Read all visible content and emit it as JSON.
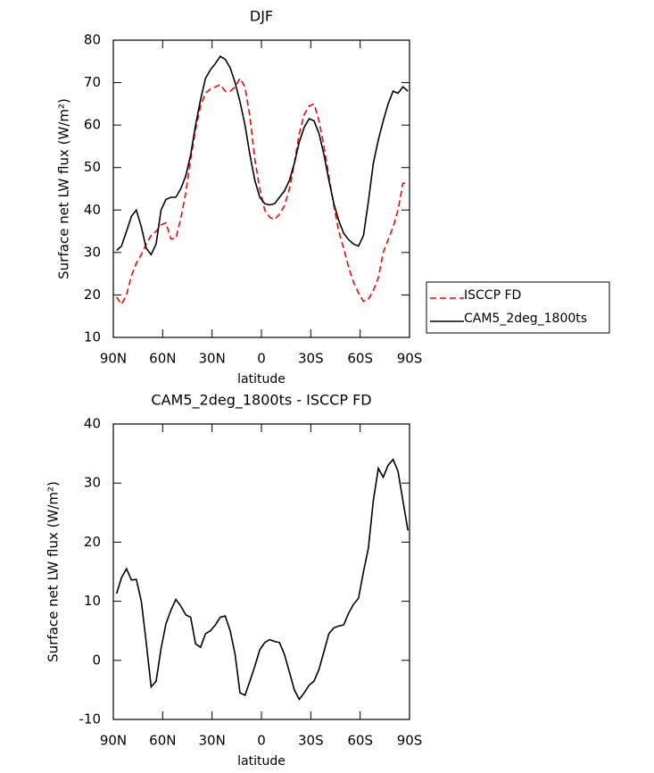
{
  "chart_data": [
    {
      "type": "line",
      "title": "DJF",
      "xlabel": "latitude",
      "ylabel": "Surface net LW flux (W/m²)",
      "x": [
        88,
        85,
        82,
        79,
        76,
        73,
        70,
        67,
        64,
        61,
        58,
        55,
        52,
        49,
        46,
        43,
        40,
        37,
        34,
        31,
        28,
        25,
        22,
        19,
        16,
        13,
        10,
        7,
        4,
        1,
        -2,
        -5,
        -8,
        -11,
        -14,
        -17,
        -20,
        -23,
        -26,
        -29,
        -32,
        -35,
        -38,
        -41,
        -44,
        -47,
        -50,
        -53,
        -56,
        -59,
        -62,
        -65,
        -68,
        -71,
        -74,
        -77,
        -80,
        -83,
        -86,
        -89
      ],
      "series": [
        {
          "name": "ISCCP FD",
          "color": "#ff0000",
          "linestyle": "dashed",
          "values": [
            19.5,
            17.8,
            20,
            24.5,
            27.5,
            29.5,
            32,
            34,
            35,
            36.5,
            37,
            33.2,
            33.3,
            38,
            44,
            52,
            59,
            64.5,
            67.5,
            68.5,
            69,
            69.5,
            68,
            68,
            69,
            71,
            69,
            62,
            52,
            45,
            40,
            38.3,
            37.8,
            39,
            41,
            45,
            51,
            58,
            62.5,
            64.5,
            65,
            61,
            55,
            48,
            41,
            35,
            31,
            26.5,
            23,
            20.5,
            18.5,
            19,
            21,
            24,
            30,
            33,
            36,
            40,
            46.3,
            46.3
          ]
        },
        {
          "name": "CAM5_2deg_1800ts",
          "color": "#000000",
          "linestyle": "solid",
          "values": [
            30.5,
            31.5,
            35,
            38.5,
            40,
            36,
            31,
            29.5,
            32,
            40,
            42.5,
            43,
            43,
            45,
            48,
            53,
            60,
            66,
            71,
            73,
            74.5,
            76.2,
            75.5,
            73.5,
            70,
            65.5,
            60,
            53,
            47,
            43,
            41.5,
            41.2,
            41.5,
            43,
            44.5,
            47,
            51,
            56,
            59.5,
            61.5,
            61,
            58,
            53,
            47,
            41.5,
            37.5,
            34.5,
            33,
            32,
            31.5,
            34,
            42,
            51,
            56.5,
            61,
            65,
            68,
            67.5,
            69,
            68
          ]
        }
      ],
      "xlim": [
        90,
        -90
      ],
      "xticks": [
        {
          "value": 90,
          "label": "90N"
        },
        {
          "value": 60,
          "label": "60N"
        },
        {
          "value": 30,
          "label": "30N"
        },
        0,
        {
          "value": -30,
          "label": "30S"
        },
        {
          "value": -60,
          "label": "60S"
        },
        {
          "value": -90,
          "label": "90S"
        }
      ],
      "ylim": [
        10,
        80
      ],
      "yticks": [
        10,
        20,
        30,
        40,
        50,
        60,
        70,
        80
      ],
      "legend": "right"
    },
    {
      "type": "line",
      "title": "CAM5_2deg_1800ts - ISCCP FD",
      "xlabel": "latitude",
      "ylabel": "Surface net LW flux (W/m²)",
      "x": [
        88,
        85,
        82,
        79,
        76,
        73,
        70,
        67,
        64,
        61,
        58,
        55,
        52,
        49,
        46,
        43,
        40,
        37,
        34,
        31,
        28,
        25,
        22,
        19,
        16,
        13,
        10,
        7,
        4,
        1,
        -2,
        -5,
        -8,
        -11,
        -14,
        -17,
        -20,
        -23,
        -26,
        -29,
        -32,
        -35,
        -38,
        -41,
        -44,
        -47,
        -50,
        -53,
        -56,
        -59,
        -62,
        -65,
        -68,
        -71,
        -74,
        -77,
        -80,
        -83,
        -86,
        -89
      ],
      "series": [
        {
          "color": "#000000",
          "linestyle": "solid",
          "values": [
            11.3,
            14,
            15.5,
            13.6,
            13.7,
            10,
            3,
            -4.5,
            -3.5,
            2,
            6.2,
            8.5,
            10.3,
            9.2,
            7.7,
            7.3,
            2.8,
            2.2,
            4.5,
            5,
            6,
            7.3,
            7.5,
            5,
            1,
            -5.5,
            -5.9,
            -3.5,
            -1,
            1.8,
            3,
            3.5,
            3.2,
            3,
            1,
            -2,
            -5,
            -6.6,
            -5.5,
            -4.2,
            -3.5,
            -1.5,
            1.5,
            4.5,
            5.5,
            5.8,
            6,
            8,
            9.5,
            10.5,
            15,
            19,
            27,
            32.5,
            31,
            33,
            34,
            32,
            27,
            22
          ]
        }
      ],
      "xlim": [
        90,
        -90
      ],
      "xticks": [
        {
          "value": 90,
          "label": "90N"
        },
        {
          "value": 60,
          "label": "60N"
        },
        {
          "value": 30,
          "label": "30N"
        },
        0,
        {
          "value": -30,
          "label": "30S"
        },
        {
          "value": -60,
          "label": "60S"
        },
        {
          "value": -90,
          "label": "90S"
        }
      ],
      "ylim": [
        -10,
        40
      ],
      "yticks": [
        -10,
        0,
        10,
        20,
        30,
        40
      ]
    }
  ]
}
